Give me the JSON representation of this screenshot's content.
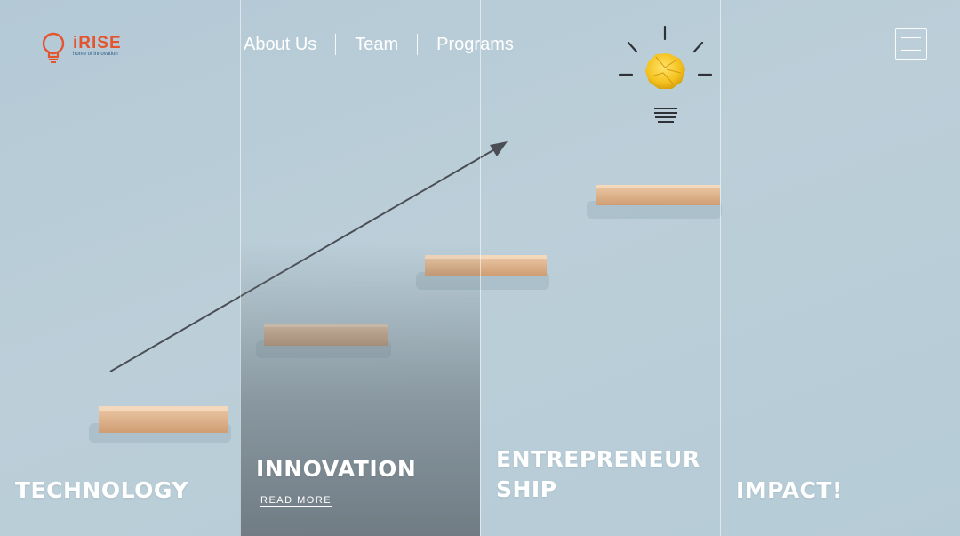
{
  "brand": {
    "name": "iRISE",
    "tagline": "home of innovation",
    "accent_color": "#e4552f",
    "tagline_color": "#2f5b8a"
  },
  "nav": {
    "items": [
      {
        "label": "About Us"
      },
      {
        "label": "Team"
      },
      {
        "label": "Programs"
      }
    ],
    "menu_icon": "hamburger-menu-icon"
  },
  "panels": [
    {
      "title": "TECHNOLOGY",
      "active": false
    },
    {
      "title": "INNOVATION",
      "active": true,
      "link_label": "READ MORE"
    },
    {
      "title": "ENTREPRENEURSHIP",
      "active": false
    },
    {
      "title": "IMPACT!",
      "active": false
    }
  ],
  "hero": {
    "background_color": "#b7cdd8",
    "idea_icon": "crumpled-paper-lightbulb-icon",
    "growth_icon": "upward-arrow-icon"
  }
}
